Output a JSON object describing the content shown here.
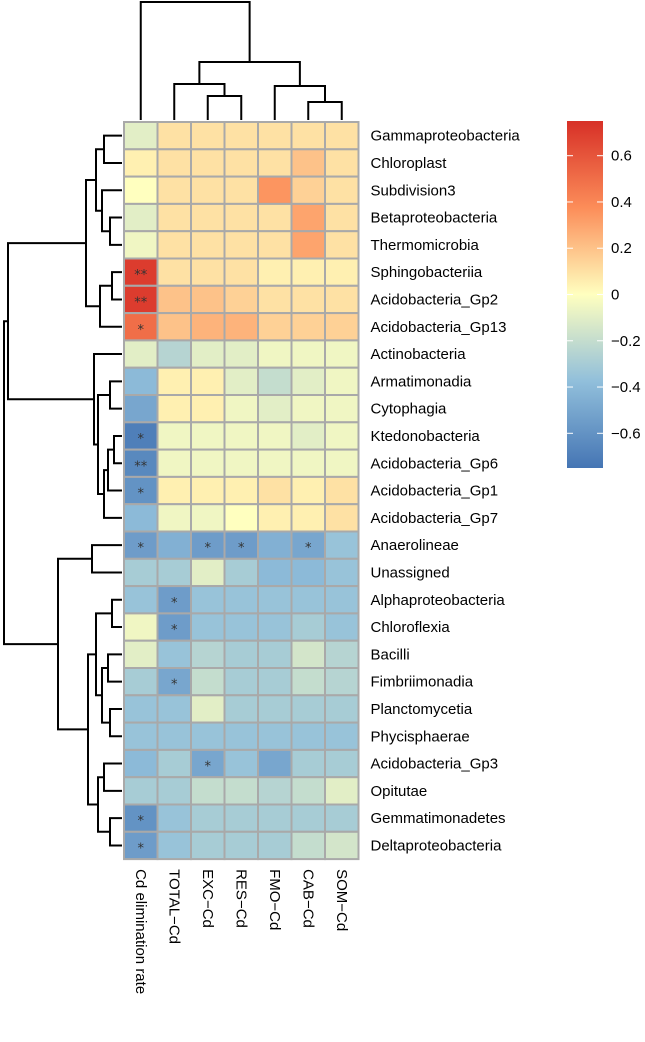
{
  "chart_data": {
    "type": "heatmap",
    "title": "",
    "xlabel": "",
    "ylabel": "",
    "columns": [
      "Cd elimination rate",
      "TOTAL−Cd",
      "EXC−Cd",
      "RES−Cd",
      "FMO−Cd",
      "CAB−Cd",
      "SOM−Cd"
    ],
    "rows": [
      "Gammaproteobacteria",
      "Chloroplast",
      "Subdivision3",
      "Betaproteobacteria",
      "Thermomicrobia",
      "Sphingobacteriia",
      "Acidobacteria_Gp2",
      "Acidobacteria_Gp13",
      "Actinobacteria",
      "Armatimonadia",
      "Cytophagia",
      "Ktedonobacteria",
      "Acidobacteria_Gp6",
      "Acidobacteria_Gp1",
      "Acidobacteria_Gp7",
      "Anaerolineae",
      "Unassigned",
      "Alphaproteobacteria",
      "Chloroflexia",
      "Bacilli",
      "Fimbriimonadia",
      "Planctomycetia",
      "Phycisphaerae",
      "Acidobacteria_Gp3",
      "Opitutae",
      "Gemmatimonadetes",
      "Deltaproteobacteria"
    ],
    "values": [
      [
        -0.1,
        0.1,
        0.1,
        0.1,
        0.1,
        0.1,
        0.1
      ],
      [
        0.05,
        0.1,
        0.1,
        0.1,
        0.1,
        0.2,
        0.1
      ],
      [
        0.0,
        0.1,
        0.1,
        0.1,
        0.35,
        0.15,
        0.1
      ],
      [
        -0.1,
        0.1,
        0.1,
        0.1,
        0.1,
        0.3,
        0.1
      ],
      [
        -0.05,
        0.1,
        0.1,
        0.1,
        0.1,
        0.3,
        0.1
      ],
      [
        0.7,
        0.1,
        0.1,
        0.1,
        0.05,
        0.05,
        0.05
      ],
      [
        0.7,
        0.2,
        0.2,
        0.15,
        0.1,
        0.1,
        0.1
      ],
      [
        0.5,
        0.2,
        0.25,
        0.25,
        0.15,
        0.15,
        0.15
      ],
      [
        -0.1,
        -0.25,
        -0.1,
        -0.1,
        -0.05,
        -0.05,
        -0.05
      ],
      [
        -0.4,
        0.05,
        0.05,
        -0.1,
        -0.2,
        -0.1,
        -0.05
      ],
      [
        -0.5,
        0.05,
        0.05,
        -0.05,
        -0.1,
        -0.05,
        -0.05
      ],
      [
        -0.7,
        -0.05,
        -0.05,
        -0.05,
        -0.05,
        -0.1,
        -0.05
      ],
      [
        -0.65,
        -0.05,
        -0.05,
        -0.05,
        -0.05,
        -0.05,
        -0.05
      ],
      [
        -0.6,
        0.05,
        0.05,
        0.05,
        0.1,
        0.05,
        0.1
      ],
      [
        -0.4,
        -0.05,
        -0.05,
        0.0,
        0.05,
        0.05,
        0.1
      ],
      [
        -0.55,
        -0.45,
        -0.55,
        -0.55,
        -0.45,
        -0.5,
        -0.35
      ],
      [
        -0.3,
        -0.3,
        -0.1,
        -0.3,
        -0.4,
        -0.4,
        -0.35
      ],
      [
        -0.35,
        -0.55,
        -0.35,
        -0.35,
        -0.35,
        -0.35,
        -0.35
      ],
      [
        -0.05,
        -0.55,
        -0.35,
        -0.35,
        -0.35,
        -0.3,
        -0.35
      ],
      [
        -0.1,
        -0.35,
        -0.25,
        -0.3,
        -0.3,
        -0.15,
        -0.25
      ],
      [
        -0.3,
        -0.5,
        -0.2,
        -0.3,
        -0.3,
        -0.2,
        -0.25
      ],
      [
        -0.35,
        -0.35,
        -0.1,
        -0.3,
        -0.3,
        -0.3,
        -0.3
      ],
      [
        -0.35,
        -0.35,
        -0.35,
        -0.35,
        -0.35,
        -0.35,
        -0.35
      ],
      [
        -0.4,
        -0.3,
        -0.5,
        -0.35,
        -0.5,
        -0.3,
        -0.3
      ],
      [
        -0.3,
        -0.3,
        -0.2,
        -0.2,
        -0.25,
        -0.2,
        -0.1
      ],
      [
        -0.6,
        -0.35,
        -0.3,
        -0.3,
        -0.3,
        -0.3,
        -0.3
      ],
      [
        -0.55,
        -0.35,
        -0.3,
        -0.3,
        -0.3,
        -0.2,
        -0.15
      ]
    ],
    "significance": [
      [
        "",
        "",
        "",
        "",
        "",
        "",
        ""
      ],
      [
        "",
        "",
        "",
        "",
        "",
        "",
        ""
      ],
      [
        "",
        "",
        "",
        "",
        "",
        "",
        ""
      ],
      [
        "",
        "",
        "",
        "",
        "",
        "",
        ""
      ],
      [
        "",
        "",
        "",
        "",
        "",
        "",
        ""
      ],
      [
        "**",
        "",
        "",
        "",
        "",
        "",
        ""
      ],
      [
        "**",
        "",
        "",
        "",
        "",
        "",
        ""
      ],
      [
        "*",
        "",
        "",
        "",
        "",
        "",
        ""
      ],
      [
        "",
        "",
        "",
        "",
        "",
        "",
        ""
      ],
      [
        "",
        "",
        "",
        "",
        "",
        "",
        ""
      ],
      [
        "",
        "",
        "",
        "",
        "",
        "",
        ""
      ],
      [
        "*",
        "",
        "",
        "",
        "",
        "",
        ""
      ],
      [
        "**",
        "",
        "",
        "",
        "",
        "",
        ""
      ],
      [
        "*",
        "",
        "",
        "",
        "",
        "",
        ""
      ],
      [
        "",
        "",
        "",
        "",
        "",
        "",
        ""
      ],
      [
        "*",
        "",
        "*",
        "*",
        "",
        "*",
        ""
      ],
      [
        "",
        "",
        "",
        "",
        "",
        "",
        ""
      ],
      [
        "",
        "*",
        "",
        "",
        "",
        "",
        ""
      ],
      [
        "",
        "*",
        "",
        "",
        "",
        "",
        ""
      ],
      [
        "",
        "",
        "",
        "",
        "",
        "",
        ""
      ],
      [
        "",
        "*",
        "",
        "",
        "",
        "",
        ""
      ],
      [
        "",
        "",
        "",
        "",
        "",
        "",
        ""
      ],
      [
        "",
        "",
        "",
        "",
        "",
        "",
        ""
      ],
      [
        "",
        "",
        "*",
        "",
        "",
        "",
        ""
      ],
      [
        "",
        "",
        "",
        "",
        "",
        "",
        ""
      ],
      [
        "*",
        "",
        "",
        "",
        "",
        "",
        ""
      ],
      [
        "*",
        "",
        "",
        "",
        "",
        "",
        ""
      ]
    ],
    "color_scale": {
      "min": -0.75,
      "max": 0.75,
      "stops": [
        {
          "value": -0.75,
          "color": "#4575b4"
        },
        {
          "value": -0.375,
          "color": "#91bfdb"
        },
        {
          "value": 0.0,
          "color": "#ffffbf"
        },
        {
          "value": 0.375,
          "color": "#fc8d59"
        },
        {
          "value": 0.75,
          "color": "#d73027"
        }
      ]
    },
    "legend_ticks": [
      "0.6",
      "0.4",
      "0.2",
      "0",
      "−0.2",
      "−0.4",
      "−0.6"
    ],
    "legend_tick_values": [
      0.6,
      0.4,
      0.2,
      0,
      -0.2,
      -0.4,
      -0.6
    ],
    "legend_placement": "right"
  }
}
